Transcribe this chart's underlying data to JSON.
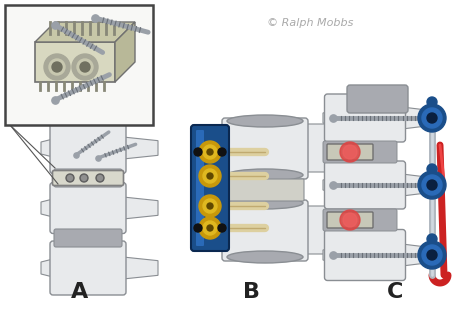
{
  "background_color": "#ffffff",
  "copyright_text": "© Ralph Mobbs",
  "copyright_color": "#aaaaaa",
  "copyright_fontsize": 8,
  "labels": [
    "A",
    "B",
    "C"
  ],
  "label_fontsize": 16,
  "label_color": "#222222",
  "fig_width": 4.74,
  "fig_height": 3.11,
  "dpi": 100,
  "bone_light": "#e8eaec",
  "bone_mid": "#c8cacf",
  "bone_dark": "#9fa3a8",
  "bone_outline": "#8a8e93",
  "disc_color": "#a8aab0",
  "plate_blue": "#1a4e8a",
  "plate_blue_light": "#2a6ab8",
  "gold_color": "#c8980a",
  "gold_light": "#e0b820",
  "peg_color": "#ddd0a0",
  "rod_red": "#cc2222",
  "rod_silver": "#b0b8c0",
  "connector_blue": "#1a4e8a",
  "screw_color": "#9aa0a8",
  "screw_thread": "#6a7078",
  "cage_body": "#d0d0b8",
  "cage_teeth": "#a0a090",
  "inset_bg": "#f8f8f6",
  "inset_border": "#444444"
}
